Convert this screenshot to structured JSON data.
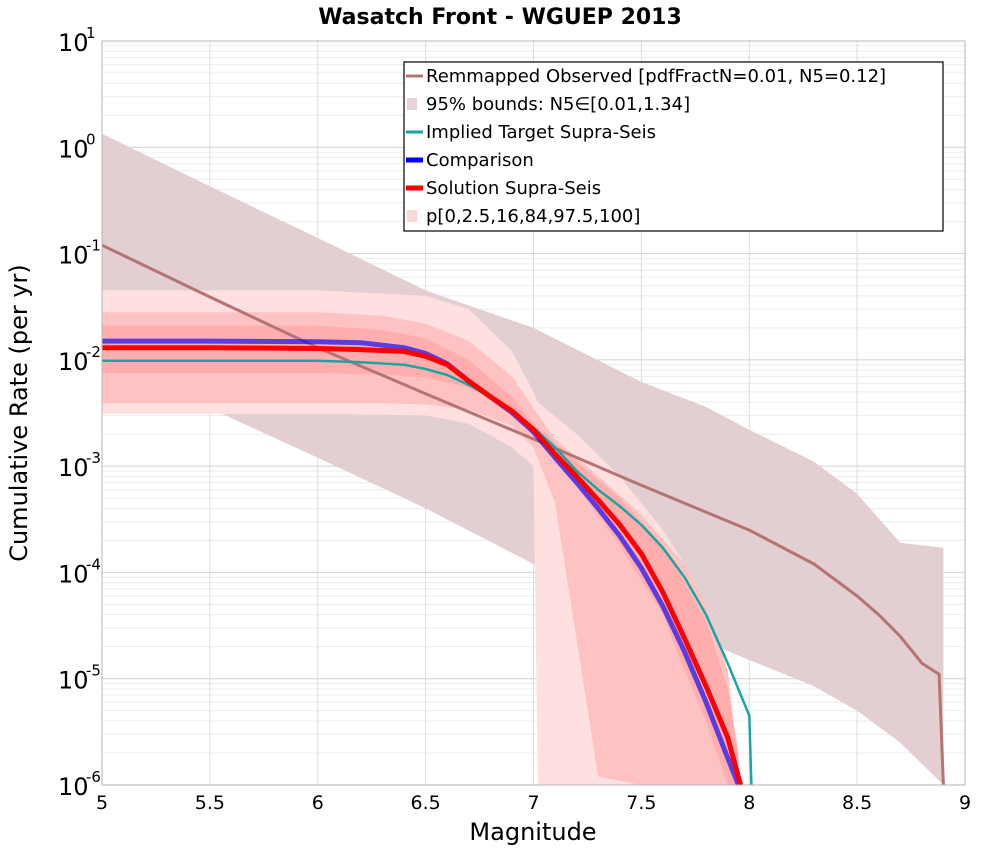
{
  "chart_data": {
    "type": "line",
    "title": "Wasatch Front - WGUEP 2013",
    "xlabel": "Magnitude",
    "ylabel": "Cumulative Rate (per yr)",
    "xlim": [
      5,
      9
    ],
    "ylim": [
      1e-06,
      10
    ],
    "yscale": "log",
    "grid": true,
    "legend_position": "top-right",
    "x_ticks": [
      "5",
      "5.5",
      "6",
      "6.5",
      "7",
      "7.5",
      "8",
      "8.5",
      "9"
    ],
    "y_ticks": [
      {
        "base": "10",
        "exp": "-6"
      },
      {
        "base": "10",
        "exp": "-5"
      },
      {
        "base": "10",
        "exp": "-4"
      },
      {
        "base": "10",
        "exp": "-3"
      },
      {
        "base": "10",
        "exp": "-2"
      },
      {
        "base": "10",
        "exp": "-1"
      },
      {
        "base": "10",
        "exp": "0"
      },
      {
        "base": "10",
        "exp": "1"
      }
    ],
    "legend": [
      {
        "label": "Remmapped Observed [pdfFractN=0.01, N5=0.12]",
        "kind": "line",
        "color": "#b57474"
      },
      {
        "label": "95% bounds: N5∈[0.01,1.34]",
        "kind": "patch",
        "color": "#e8d4d6"
      },
      {
        "label": "Implied Target Supra-Seis",
        "kind": "line",
        "color": "#1aa5a5"
      },
      {
        "label": "Comparison",
        "kind": "line",
        "color": "#0000ff"
      },
      {
        "label": "Solution Supra-Seis",
        "kind": "line",
        "color": "#ff0000"
      },
      {
        "label": "p[0,2.5,16,84,97.5,100]",
        "kind": "patch",
        "color": "#ffd6d6"
      }
    ],
    "bands": [
      {
        "name": "95% bounds",
        "color": "#e3cfd1",
        "x": [
          5.0,
          5.5,
          6.0,
          6.5,
          7.0,
          7.5,
          7.8,
          8.0,
          8.3,
          8.5,
          8.7,
          8.9
        ],
        "upper": [
          1.34,
          0.43,
          0.14,
          0.045,
          0.02,
          0.0062,
          0.0036,
          0.0022,
          0.0011,
          0.00055,
          0.00019,
          0.00017
        ],
        "lower": [
          0.01,
          0.0035,
          0.0012,
          0.0004,
          0.00012,
          4e-05,
          2.2e-05,
          1.5e-05,
          8.5e-06,
          5e-06,
          2.5e-06,
          1e-06
        ]
      },
      {
        "name": "p0-p100",
        "color": "#ffe0e0",
        "x": [
          5.0,
          5.5,
          6.0,
          6.5,
          6.7,
          6.9,
          7.0,
          7.02,
          7.2,
          7.4,
          7.6,
          7.7,
          7.8,
          7.9,
          7.95
        ],
        "upper": [
          0.045,
          0.045,
          0.045,
          0.04,
          0.03,
          0.012,
          0.005,
          0.004,
          0.002,
          0.0008,
          0.00025,
          0.00012,
          4e-05,
          8e-06,
          1.2e-06
        ],
        "lower": [
          0.0031,
          0.0031,
          0.0031,
          0.003,
          0.0025,
          0.0015,
          0.001,
          1e-06,
          1e-06,
          1e-06,
          1e-06,
          1e-06,
          1e-06,
          1e-06,
          1e-06
        ]
      },
      {
        "name": "p2.5-p97.5",
        "color": "#ffc2c2",
        "x": [
          5.0,
          5.5,
          6.0,
          6.3,
          6.5,
          6.7,
          6.9,
          7.0,
          7.1,
          7.3,
          7.5,
          7.7,
          7.8,
          7.9,
          7.95
        ],
        "upper": [
          0.028,
          0.028,
          0.028,
          0.026,
          0.022,
          0.015,
          0.007,
          0.0035,
          0.0018,
          0.0008,
          0.00035,
          0.00012,
          5e-05,
          1.2e-05,
          1.5e-06
        ],
        "lower": [
          0.0039,
          0.0039,
          0.0039,
          0.0039,
          0.0038,
          0.0034,
          0.0024,
          0.0015,
          0.00045,
          1.2e-06,
          1e-06,
          1e-06,
          1e-06,
          1e-06,
          1e-06
        ]
      },
      {
        "name": "p16-p84",
        "color": "#ffadad",
        "x": [
          5.0,
          5.5,
          6.0,
          6.3,
          6.5,
          6.7,
          6.9,
          7.0,
          7.2,
          7.4,
          7.6,
          7.7,
          7.8,
          7.9,
          7.95
        ],
        "upper": [
          0.021,
          0.021,
          0.021,
          0.019,
          0.016,
          0.01,
          0.0045,
          0.0025,
          0.0011,
          0.0005,
          0.00018,
          8e-05,
          3.5e-05,
          8e-06,
          2e-06
        ],
        "lower": [
          0.0075,
          0.0075,
          0.0075,
          0.0073,
          0.0068,
          0.0055,
          0.0034,
          0.0019,
          0.00065,
          0.00018,
          4e-05,
          1.2e-05,
          4e-06,
          1e-06,
          1e-06
        ]
      }
    ],
    "series": [
      {
        "name": "Remmapped Observed [pdfFractN=0.01, N5=0.12]",
        "color": "#b57474",
        "width": 3,
        "x": [
          5.0,
          5.5,
          6.0,
          6.5,
          7.0,
          7.5,
          8.0,
          8.3,
          8.5,
          8.6,
          8.7,
          8.8,
          8.88,
          8.9
        ],
        "y": [
          0.12,
          0.039,
          0.013,
          0.0048,
          0.0018,
          0.00066,
          0.00025,
          0.00012,
          6e-05,
          4e-05,
          2.5e-05,
          1.4e-05,
          1.1e-05,
          1e-06
        ]
      },
      {
        "name": "Implied Target Supra-Seis",
        "color": "#1aa5a5",
        "width": 2.5,
        "x": [
          5.0,
          5.5,
          6.0,
          6.2,
          6.4,
          6.5,
          6.6,
          6.7,
          6.8,
          6.9,
          7.0,
          7.1,
          7.2,
          7.3,
          7.4,
          7.5,
          7.6,
          7.7,
          7.8,
          7.9,
          8.0,
          8.01
        ],
        "y": [
          0.0098,
          0.0098,
          0.0098,
          0.0095,
          0.009,
          0.0082,
          0.0072,
          0.0058,
          0.0045,
          0.0033,
          0.0023,
          0.0015,
          0.0009,
          0.0006,
          0.00042,
          0.00028,
          0.00017,
          9e-05,
          4e-05,
          1.4e-05,
          4.5e-06,
          1e-06
        ]
      },
      {
        "name": "Comparison",
        "color": "#0000ff",
        "width": 5,
        "x": [
          5.0,
          5.5,
          6.0,
          6.2,
          6.4,
          6.5,
          6.6,
          6.7,
          6.8,
          6.9,
          7.0,
          7.1,
          7.2,
          7.3,
          7.4,
          7.5,
          7.6,
          7.7,
          7.8,
          7.9,
          7.95
        ],
        "y": [
          0.015,
          0.015,
          0.0148,
          0.0145,
          0.013,
          0.0115,
          0.0092,
          0.0063,
          0.0045,
          0.0032,
          0.0021,
          0.0012,
          0.0007,
          0.0004,
          0.00022,
          0.00011,
          4.8e-05,
          1.8e-05,
          6e-06,
          1.8e-06,
          1e-06
        ]
      },
      {
        "name": "Solution Supra-Seis",
        "color": "#ff0000",
        "width": 5,
        "x": [
          5.0,
          5.5,
          6.0,
          6.2,
          6.4,
          6.5,
          6.6,
          6.7,
          6.8,
          6.9,
          7.0,
          7.1,
          7.2,
          7.3,
          7.4,
          7.5,
          7.6,
          7.7,
          7.8,
          7.9,
          7.96
        ],
        "y": [
          0.013,
          0.013,
          0.0128,
          0.0125,
          0.012,
          0.0108,
          0.009,
          0.0063,
          0.0045,
          0.0033,
          0.0022,
          0.0013,
          0.0008,
          0.00048,
          0.00028,
          0.00015,
          6.5e-05,
          2.4e-05,
          8.5e-06,
          2.8e-06,
          1e-06
        ]
      }
    ]
  }
}
